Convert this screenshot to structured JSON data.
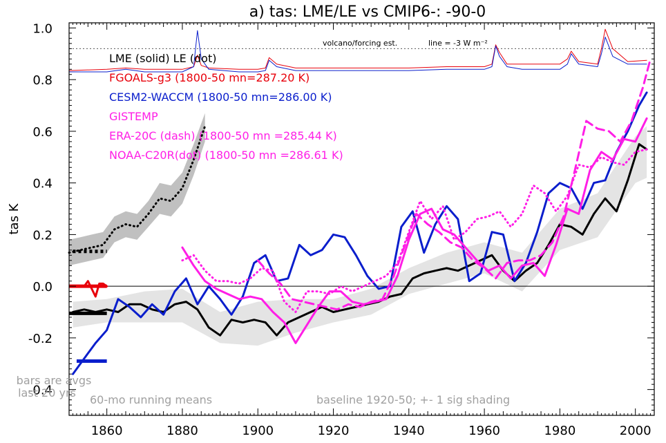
{
  "chart_data": {
    "type": "line",
    "title": "a) tas: LME/LE vs CMIP6-: -90-0",
    "ylabel": "tas K",
    "xlabel": "",
    "xlim": [
      1850,
      2005
    ],
    "ylim": [
      -0.5,
      1.02
    ],
    "x_ticks": [
      1860,
      1880,
      1900,
      1920,
      1940,
      1960,
      1980,
      2000
    ],
    "y_ticks": [
      {
        "value": 1.0,
        "label": "1.0"
      },
      {
        "value": 0.8,
        "label": "0.8"
      },
      {
        "value": 0.6,
        "label": "0.6"
      },
      {
        "value": 0.4,
        "label": "0.4"
      },
      {
        "value": 0.2,
        "label": "0.2"
      },
      {
        "value": 0.0,
        "label": "0.0"
      },
      {
        "value": -0.2,
        "label": "-0.2"
      },
      {
        "value": -0.4,
        "label": "-0.4"
      }
    ],
    "legend": [
      {
        "text": "LME (solid)   LE (dot)",
        "color": "#000000"
      },
      {
        "text": "FGOALS-g3 (1800-50 mn=287.20 K)",
        "color": "#e8000b"
      },
      {
        "text": "CESM2-WACCM (1800-50 mn=286.00 K)",
        "color": "#0a1ecc"
      },
      {
        "text": "GISTEMP",
        "color": "#ff1ee6"
      },
      {
        "text": "ERA-20C (dash) (1800-50 mn =285.44 K)",
        "color": "#ff1ee6"
      },
      {
        "text": "NOAA-C20R(dot) (1800-50 mn =286.61 K)",
        "color": "#ff1ee6"
      }
    ],
    "annotations": {
      "volcano": "volcano/forcing est.",
      "line_scale": "line = -3 W m⁻²",
      "bars_note_1": "bars are avgs",
      "bars_note_2": "last 20 yrs",
      "running_mean": "60-mo running means",
      "baseline": "baseline 1920-50; +- 1 sig shading"
    },
    "volcano_reference_level": 0.92,
    "series": [
      {
        "name": "LME",
        "color": "#000000",
        "style": "solid",
        "x": [
          1851,
          1854,
          1857,
          1860,
          1863,
          1866,
          1869,
          1872,
          1875,
          1878,
          1881,
          1884,
          1887,
          1890,
          1893,
          1896,
          1899,
          1902,
          1905,
          1908,
          1911,
          1914,
          1917,
          1920,
          1923,
          1926,
          1929,
          1932,
          1935,
          1938,
          1941,
          1944,
          1947,
          1950,
          1953,
          1956,
          1959,
          1962,
          1965,
          1968,
          1971,
          1974,
          1977,
          1980,
          1983,
          1986,
          1989,
          1992,
          1995,
          1998,
          2001,
          2003
        ],
        "y": [
          -0.1,
          -0.09,
          -0.1,
          -0.09,
          -0.1,
          -0.07,
          -0.07,
          -0.09,
          -0.1,
          -0.07,
          -0.06,
          -0.09,
          -0.16,
          -0.19,
          -0.13,
          -0.14,
          -0.13,
          -0.14,
          -0.19,
          -0.14,
          -0.12,
          -0.1,
          -0.08,
          -0.1,
          -0.09,
          -0.08,
          -0.07,
          -0.06,
          -0.04,
          -0.03,
          0.03,
          0.05,
          0.06,
          0.07,
          0.06,
          0.08,
          0.1,
          0.12,
          0.06,
          0.02,
          0.06,
          0.09,
          0.16,
          0.24,
          0.23,
          0.2,
          0.28,
          0.34,
          0.29,
          0.41,
          0.55,
          0.53
        ]
      },
      {
        "name": "LE",
        "color": "#000000",
        "style": "dot",
        "x": [
          1850,
          1853,
          1856,
          1859,
          1862,
          1865,
          1868,
          1871,
          1874,
          1877,
          1880,
          1883,
          1886
        ],
        "y": [
          0.13,
          0.14,
          0.15,
          0.16,
          0.22,
          0.24,
          0.23,
          0.28,
          0.34,
          0.33,
          0.38,
          0.49,
          0.62
        ]
      },
      {
        "name": "FGOALS-g3",
        "color": "#e8000b",
        "style": "solid",
        "x": [
          1854,
          1855,
          1856,
          1857,
          1858,
          1859,
          1860
        ],
        "y": [
          0.0,
          0.02,
          -0.01,
          -0.04,
          0.01,
          0.01,
          0.0
        ]
      },
      {
        "name": "CESM2-WACCM",
        "color": "#0a1ecc",
        "style": "solid",
        "x": [
          1851,
          1853,
          1855,
          1857,
          1860,
          1863,
          1866,
          1869,
          1872,
          1875,
          1878,
          1881,
          1884,
          1887,
          1890,
          1893,
          1896,
          1899,
          1902,
          1905,
          1908,
          1911,
          1914,
          1917,
          1920,
          1923,
          1926,
          1929,
          1932,
          1935,
          1938,
          1941,
          1944,
          1947,
          1950,
          1953,
          1956,
          1959,
          1962,
          1965,
          1968,
          1971,
          1974,
          1977,
          1980,
          1983,
          1986,
          1989,
          1992,
          1995,
          1998,
          2001,
          2003
        ],
        "y": [
          -0.34,
          -0.3,
          -0.26,
          -0.22,
          -0.17,
          -0.05,
          -0.08,
          -0.12,
          -0.07,
          -0.11,
          -0.02,
          0.03,
          -0.07,
          0.0,
          -0.05,
          -0.11,
          -0.04,
          0.09,
          0.12,
          0.02,
          0.03,
          0.16,
          0.12,
          0.14,
          0.2,
          0.19,
          0.12,
          0.04,
          -0.01,
          0.0,
          0.23,
          0.29,
          0.13,
          0.24,
          0.31,
          0.26,
          0.02,
          0.05,
          0.21,
          0.2,
          0.02,
          0.09,
          0.21,
          0.36,
          0.4,
          0.38,
          0.3,
          0.4,
          0.41,
          0.52,
          0.6,
          0.7,
          0.75
        ]
      },
      {
        "name": "GISTEMP",
        "color": "#ff1ee6",
        "style": "solid",
        "x": [
          1880,
          1883,
          1886,
          1889,
          1892,
          1895,
          1898,
          1901,
          1904,
          1907,
          1910,
          1913,
          1916,
          1919,
          1922,
          1925,
          1928,
          1931,
          1934,
          1937,
          1940,
          1943,
          1946,
          1949,
          1952,
          1955,
          1958,
          1961,
          1964,
          1967,
          1970,
          1973,
          1976,
          1979,
          1982,
          1985,
          1988,
          1991,
          1994,
          1997,
          2000,
          2003
        ],
        "y": [
          0.15,
          0.08,
          0.02,
          -0.01,
          -0.03,
          -0.05,
          -0.04,
          -0.05,
          -0.1,
          -0.14,
          -0.22,
          -0.15,
          -0.08,
          -0.02,
          -0.02,
          -0.06,
          -0.07,
          -0.06,
          -0.05,
          0.04,
          0.18,
          0.28,
          0.3,
          0.22,
          0.2,
          0.15,
          0.1,
          0.06,
          0.08,
          0.03,
          0.08,
          0.09,
          0.04,
          0.16,
          0.3,
          0.28,
          0.45,
          0.52,
          0.49,
          0.57,
          0.56,
          0.65
        ]
      },
      {
        "name": "ERA-20C",
        "color": "#ff1ee6",
        "style": "dash",
        "x": [
          1900,
          1903,
          1906,
          1909,
          1912,
          1915,
          1918,
          1921,
          1924,
          1927,
          1930,
          1933,
          1936,
          1939,
          1942,
          1945,
          1948,
          1951,
          1954,
          1957,
          1960,
          1963,
          1966,
          1969,
          1972,
          1975,
          1978,
          1981,
          1984,
          1987,
          1990,
          1993,
          1996,
          1999,
          2002,
          2004
        ],
        "y": [
          0.1,
          0.05,
          0.01,
          -0.05,
          -0.06,
          -0.07,
          -0.08,
          -0.09,
          -0.07,
          -0.08,
          -0.06,
          -0.05,
          0.04,
          0.16,
          0.28,
          0.24,
          0.21,
          0.17,
          0.15,
          0.1,
          0.07,
          0.03,
          0.09,
          0.1,
          0.1,
          0.12,
          0.17,
          0.27,
          0.45,
          0.64,
          0.61,
          0.6,
          0.56,
          0.64,
          0.77,
          0.88
        ]
      },
      {
        "name": "NOAA-C20R",
        "color": "#ff1ee6",
        "style": "dot",
        "x": [
          1880,
          1883,
          1886,
          1889,
          1892,
          1895,
          1898,
          1901,
          1904,
          1907,
          1910,
          1913,
          1916,
          1919,
          1922,
          1925,
          1928,
          1931,
          1934,
          1937,
          1940,
          1943,
          1946,
          1949,
          1952,
          1955,
          1958,
          1961,
          1964,
          1967,
          1970,
          1973,
          1976,
          1979,
          1982,
          1985,
          1988,
          1991,
          1994,
          1997,
          2000,
          2003
        ],
        "y": [
          0.1,
          0.12,
          0.06,
          0.02,
          0.02,
          0.01,
          0.03,
          0.07,
          0.06,
          -0.06,
          -0.1,
          -0.02,
          -0.02,
          -0.03,
          0.0,
          -0.02,
          0.0,
          0.02,
          0.04,
          0.09,
          0.21,
          0.33,
          0.26,
          0.31,
          0.18,
          0.21,
          0.26,
          0.27,
          0.29,
          0.23,
          0.28,
          0.39,
          0.36,
          0.29,
          0.35,
          0.47,
          0.46,
          0.5,
          0.48,
          0.47,
          0.52,
          0.53
        ]
      },
      {
        "name": "FGOALS-g3 forcing",
        "color": "#e8000b",
        "style": "solid",
        "x": [
          1850,
          1860,
          1865,
          1870,
          1880,
          1883,
          1884,
          1885,
          1887,
          1895,
          1900,
          1902,
          1903,
          1905,
          1910,
          1920,
          1930,
          1940,
          1950,
          1960,
          1962,
          1963,
          1964,
          1966,
          1970,
          1980,
          1982,
          1983,
          1985,
          1990,
          1991,
          1992,
          1994,
          1998,
          2003
        ],
        "y": [
          0.835,
          0.84,
          0.845,
          0.84,
          0.84,
          0.85,
          0.895,
          0.855,
          0.845,
          0.84,
          0.84,
          0.845,
          0.885,
          0.86,
          0.845,
          0.845,
          0.845,
          0.845,
          0.85,
          0.85,
          0.86,
          0.935,
          0.905,
          0.86,
          0.86,
          0.86,
          0.88,
          0.91,
          0.87,
          0.86,
          0.92,
          0.995,
          0.92,
          0.87,
          0.875
        ]
      },
      {
        "name": "CESM2-WACCM forcing",
        "color": "#0a1ecc",
        "style": "solid",
        "x": [
          1850,
          1860,
          1865,
          1870,
          1880,
          1883,
          1884,
          1885,
          1887,
          1895,
          1900,
          1902,
          1903,
          1905,
          1910,
          1920,
          1930,
          1940,
          1950,
          1960,
          1962,
          1963,
          1964,
          1966,
          1970,
          1980,
          1982,
          1983,
          1985,
          1990,
          1991,
          1992,
          1994,
          1998,
          2003
        ],
        "y": [
          0.83,
          0.83,
          0.84,
          0.83,
          0.83,
          0.85,
          0.99,
          0.88,
          0.84,
          0.83,
          0.83,
          0.835,
          0.875,
          0.85,
          0.835,
          0.835,
          0.835,
          0.835,
          0.84,
          0.84,
          0.85,
          0.93,
          0.89,
          0.85,
          0.84,
          0.84,
          0.86,
          0.9,
          0.86,
          0.85,
          0.9,
          0.965,
          0.89,
          0.86,
          0.86
        ]
      }
    ],
    "bands": [
      {
        "name": "LME spread",
        "color": "#e4e4e4",
        "x": [
          1851,
          1860,
          1870,
          1880,
          1890,
          1900,
          1910,
          1920,
          1930,
          1940,
          1950,
          1960,
          1970,
          1980,
          1990,
          2000,
          2003
        ],
        "lower": [
          -0.16,
          -0.14,
          -0.14,
          -0.14,
          -0.22,
          -0.23,
          -0.18,
          -0.14,
          -0.11,
          -0.03,
          0.01,
          0.05,
          -0.02,
          0.14,
          0.19,
          0.4,
          0.42
        ],
        "upper": [
          -0.06,
          -0.05,
          -0.02,
          -0.01,
          -0.1,
          -0.06,
          -0.05,
          -0.05,
          -0.01,
          0.07,
          0.13,
          0.17,
          0.13,
          0.3,
          0.36,
          0.58,
          0.62
        ]
      },
      {
        "name": "LE spread",
        "color": "#c0c0c0",
        "x": [
          1850,
          1853,
          1856,
          1859,
          1862,
          1865,
          1868,
          1871,
          1874,
          1877,
          1880,
          1883,
          1886
        ],
        "lower": [
          0.08,
          0.09,
          0.1,
          0.11,
          0.17,
          0.19,
          0.18,
          0.23,
          0.28,
          0.27,
          0.32,
          0.43,
          0.56
        ],
        "upper": [
          0.18,
          0.19,
          0.2,
          0.21,
          0.27,
          0.29,
          0.28,
          0.33,
          0.4,
          0.39,
          0.44,
          0.55,
          0.67
        ]
      }
    ],
    "bars": [
      {
        "name": "LE avg",
        "value": 0.135,
        "color": "#000000",
        "dotted": true,
        "x": [
          1851,
          1860
        ]
      },
      {
        "name": "FGOALS-g3 avg",
        "value": 0.0,
        "color": "#e8000b",
        "dotted": false,
        "x": [
          1850,
          1860
        ]
      },
      {
        "name": "LME avg",
        "value": -0.105,
        "color": "#000000",
        "dotted": false,
        "x": [
          1850,
          1860
        ]
      },
      {
        "name": "CESM2-WACCM avg",
        "value": -0.29,
        "color": "#0a1ecc",
        "dotted": false,
        "x": [
          1852,
          1860
        ]
      }
    ]
  }
}
